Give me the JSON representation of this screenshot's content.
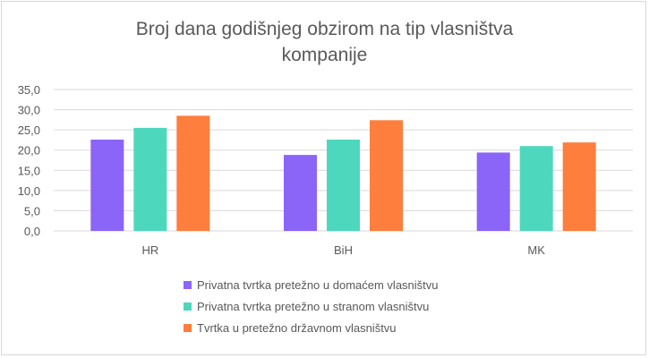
{
  "chart_data": {
    "type": "bar",
    "title": "Broj dana godišnjeg obzirom na tip vlasništva kompanije",
    "title_lines": [
      "Broj dana godišnjeg obzirom na tip vlasništva",
      "kompanije"
    ],
    "categories": [
      "HR",
      "BiH",
      "MK"
    ],
    "series": [
      {
        "name": "Privatna tvrtka pretežno u domaćem vlasništvu",
        "color": "#8b64f8",
        "values": [
          22.6,
          18.8,
          19.4
        ]
      },
      {
        "name": "Privatna tvrtka pretežno u stranom vlasništvu",
        "color": "#4dd8bd",
        "values": [
          25.5,
          22.6,
          21.0
        ]
      },
      {
        "name": "Tvrtka u pretežno državnom vlasništvu",
        "color": "#fd7e3d",
        "values": [
          28.5,
          27.4,
          21.9
        ]
      }
    ],
    "ylim": [
      0,
      35
    ],
    "yticks": [
      "0,0",
      "5,0",
      "10,0",
      "15,0",
      "20,0",
      "25,0",
      "30,0",
      "35,0"
    ],
    "xlabel": "",
    "ylabel": "",
    "grid": true,
    "legend_position": "bottom"
  }
}
